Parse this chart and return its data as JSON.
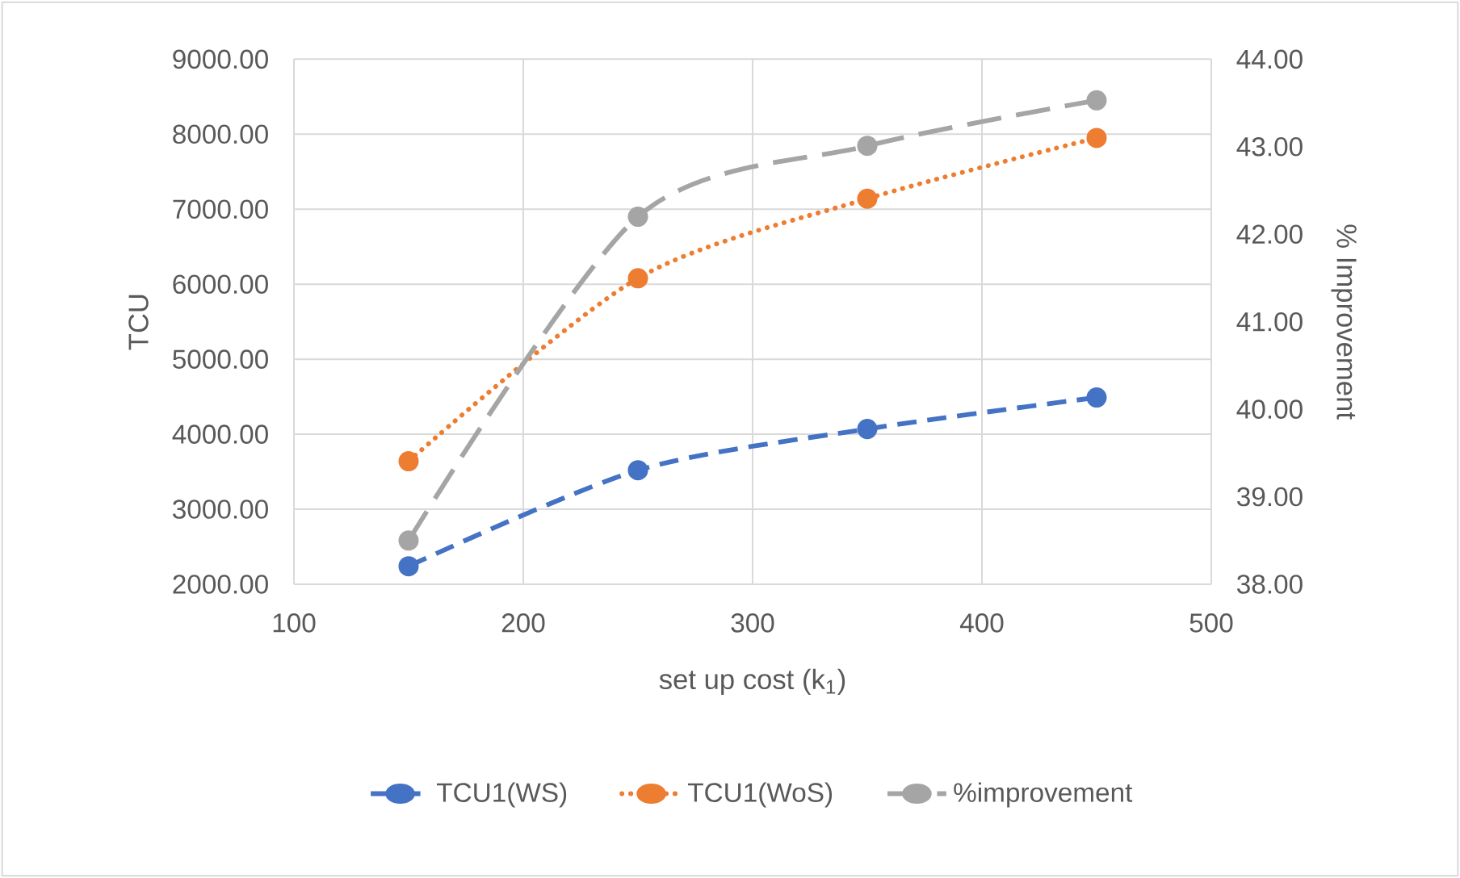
{
  "chart_data": {
    "type": "line",
    "xlabel": "set up cost (k$_{1}$)",
    "ylabel": "TCU",
    "y2label": "% Improvement",
    "x": [
      150,
      250,
      350,
      450
    ],
    "series": [
      {
        "name": "TCU1(WS)",
        "color": "#4472c4",
        "line_style": "dashed",
        "values": [
          2240,
          3520,
          4070,
          4490
        ]
      },
      {
        "name": "TCU1(WoS)",
        "color": "#ed7d31",
        "line_style": "dotted",
        "values": [
          3640,
          6080,
          7140,
          7950
        ]
      },
      {
        "name": "%improvement",
        "color": "#a5a5a5",
        "line_style": "dashed",
        "axis": "y2",
        "values": [
          38.5,
          42.2,
          43.01,
          43.53
        ]
      }
    ],
    "xlim": [
      100,
      500
    ],
    "xticks": [
      100,
      200,
      300,
      400,
      500
    ],
    "ylim": [
      2000,
      9000
    ],
    "yticks": [
      {
        "value": 2000,
        "label": "2000.00"
      },
      {
        "value": 3000,
        "label": "3000.00"
      },
      {
        "value": 4000,
        "label": "4000.00"
      },
      {
        "value": 5000,
        "label": "5000.00"
      },
      {
        "value": 6000,
        "label": "6000.00"
      },
      {
        "value": 7000,
        "label": "7000.00"
      },
      {
        "value": 8000,
        "label": "8000.00"
      },
      {
        "value": 9000,
        "label": "9000.00"
      }
    ],
    "y2lim": [
      38,
      44
    ],
    "y2ticks": [
      {
        "value": 38,
        "label": "38.00"
      },
      {
        "value": 39,
        "label": "39.00"
      },
      {
        "value": 40,
        "label": "40.00"
      },
      {
        "value": 41,
        "label": "41.00"
      },
      {
        "value": 42,
        "label": "42.00"
      },
      {
        "value": 43,
        "label": "43.00"
      },
      {
        "value": 44,
        "label": "44.00"
      }
    ],
    "grid": true,
    "legend": "bottom",
    "marker": "circle"
  }
}
